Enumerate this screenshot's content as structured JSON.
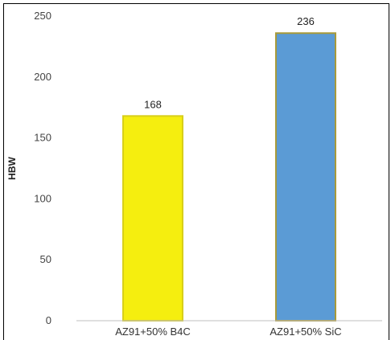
{
  "chart_data": {
    "type": "bar",
    "title": "",
    "xlabel": "",
    "ylabel": "HBW",
    "categories": [
      "AZ91+50% B4C",
      "AZ91+50% SiC"
    ],
    "values": [
      168,
      236
    ],
    "data_labels": [
      "168",
      "236"
    ],
    "ylim": [
      0,
      250
    ],
    "yticks": [
      0,
      50,
      100,
      150,
      200,
      250
    ],
    "ytick_labels": [
      "0",
      "50",
      "100",
      "150",
      "200",
      "250"
    ],
    "grid": false,
    "legend": "none",
    "bar_colors": [
      "#f5ee0f",
      "#5b9bd5"
    ],
    "bar_edge_colors": [
      "#d8cf1a",
      "#a89a3a"
    ]
  }
}
